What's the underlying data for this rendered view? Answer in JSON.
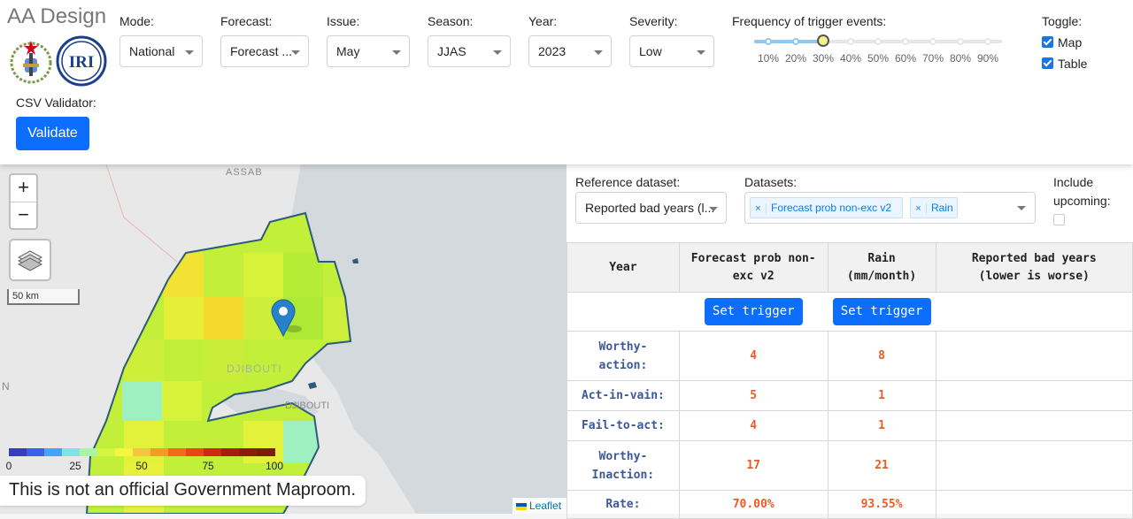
{
  "app": {
    "title": "AA Design"
  },
  "controls": {
    "mode": {
      "label": "Mode:",
      "value": "National"
    },
    "forecast": {
      "label": "Forecast:",
      "value": "Forecast ..."
    },
    "issue": {
      "label": "Issue:",
      "value": "May"
    },
    "season": {
      "label": "Season:",
      "value": "JJAS"
    },
    "year": {
      "label": "Year:",
      "value": "2023"
    },
    "severity": {
      "label": "Severity:",
      "value": "Low"
    },
    "frequency": {
      "label": "Frequency of trigger events:",
      "ticks": [
        "10%",
        "20%",
        "30%",
        "40%",
        "50%",
        "60%",
        "70%",
        "80%",
        "90%"
      ],
      "selected_percent": 30
    },
    "toggle": {
      "label": "Toggle:",
      "map_label": "Map",
      "table_label": "Table",
      "map_checked": true,
      "table_checked": true
    },
    "csv": {
      "label": "CSV Validator:",
      "button_label": "Validate"
    }
  },
  "map": {
    "place_labels": {
      "assab": "ASSAB",
      "djibouti_country": "DJIBOUTI",
      "djibouti_city": "DJIBOUTI",
      "edge_letter": "N"
    },
    "zoom_in": "+",
    "zoom_out": "−",
    "scale_label": "50 km",
    "colorbar": {
      "ticks": [
        "0",
        "25",
        "50",
        "75",
        "100"
      ],
      "colors": [
        "#3b3bbd",
        "#3d5ee6",
        "#42a5f5",
        "#7fe3e3",
        "#a8f5a8",
        "#d4f542",
        "#f5f542",
        "#f5c542",
        "#f59a23",
        "#f26b1d",
        "#e8451a",
        "#cc2a14",
        "#a61e0f",
        "#8a1e0a",
        "#7a1e0a"
      ]
    },
    "disclaimer": "This is not an official Government Maproom.",
    "attribution": "Leaflet"
  },
  "panel": {
    "reference": {
      "label": "Reference dataset:",
      "value": "Reported bad years (l..."
    },
    "datasets": {
      "label": "Datasets:",
      "tags": [
        "Forecast prob non-exc v2",
        "Rain"
      ],
      "remove_glyph": "×"
    },
    "include_upcoming": {
      "label_line1": "Include",
      "label_line2": "upcoming:",
      "checked": false
    },
    "table": {
      "headers": {
        "year": "Year",
        "forecast_line1": "Forecast prob non-",
        "forecast_line2": "exc v2",
        "rain_line1": "Rain",
        "rain_line2": "(mm/month)",
        "reported_line1": "Reported bad years",
        "reported_line2": "(lower is worse)"
      },
      "set_trigger_label": "Set trigger",
      "rows": [
        {
          "label_line1": "Worthy-",
          "label_line2": "action:",
          "forecast": "4",
          "rain": "8"
        },
        {
          "label_line1": "Act-in-vain:",
          "label_line2": "",
          "forecast": "5",
          "rain": "1"
        },
        {
          "label_line1": "Fail-to-act:",
          "label_line2": "",
          "forecast": "4",
          "rain": "1"
        },
        {
          "label_line1": "Worthy-",
          "label_line2": "Inaction:",
          "forecast": "17",
          "rain": "21"
        },
        {
          "label_line1": "Rate:",
          "label_line2": "",
          "forecast": "70.00%",
          "rain": "93.55%"
        }
      ]
    }
  }
}
